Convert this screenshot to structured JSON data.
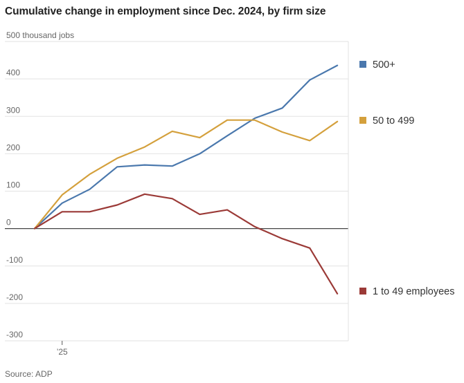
{
  "chart_data": {
    "type": "line",
    "title": "Cumulative change in employment since Dec. 2024, by firm size",
    "ylabel": "thousand jobs",
    "y_top_label": "500 thousand jobs",
    "ylim": [
      -300,
      500
    ],
    "y_ticks": [
      {
        "value": 500,
        "label": "500 thousand jobs"
      },
      {
        "value": 400,
        "label": "400"
      },
      {
        "value": 300,
        "label": "300"
      },
      {
        "value": 200,
        "label": "200"
      },
      {
        "value": 100,
        "label": "100"
      },
      {
        "value": 0,
        "label": "0"
      },
      {
        "value": -100,
        "label": "-100"
      },
      {
        "value": -200,
        "label": "-200"
      },
      {
        "value": -300,
        "label": "-300"
      }
    ],
    "x_months": [
      0,
      1,
      2,
      3,
      4,
      5,
      6,
      7,
      8,
      9,
      10,
      11
    ],
    "x_ticks": [
      {
        "value": 1,
        "label": "’25"
      }
    ],
    "xlim": [
      -0.05,
      11.3
    ],
    "grid": true,
    "legend_position": "right",
    "series": [
      {
        "name": "500+",
        "color": "#4a78ad",
        "values": [
          0,
          68,
          105,
          165,
          170,
          167,
          200,
          248,
          295,
          322,
          397,
          436
        ]
      },
      {
        "name": "50 to 499",
        "color": "#d4a03c",
        "values": [
          0,
          90,
          145,
          188,
          218,
          260,
          243,
          290,
          290,
          258,
          235,
          286
        ]
      },
      {
        "name": "1 to 49 employees",
        "color": "#9b3a37",
        "values": [
          0,
          45,
          45,
          63,
          92,
          80,
          38,
          50,
          5,
          -27,
          -52,
          -174
        ]
      }
    ]
  },
  "source": "Source: ADP"
}
